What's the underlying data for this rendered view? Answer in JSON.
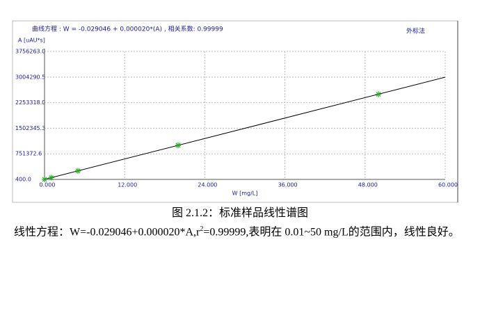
{
  "chart_data": {
    "type": "scatter",
    "title": "曲线方程 : W = -0.029046 + 0.000020*(A) , 相关系数:  0.99999",
    "method_label": "外标法",
    "y_label": "A [uAU*s]",
    "x_label": "W [mg/L]",
    "xlim": [
      0,
      60
    ],
    "xticks": [
      {
        "value": 0,
        "label": "0.000"
      },
      {
        "value": 12,
        "label": "12.000"
      },
      {
        "value": 24,
        "label": "24.000"
      },
      {
        "value": 36,
        "label": "36.000"
      },
      {
        "value": 48,
        "label": "48.000"
      },
      {
        "value": 60,
        "label": "60.000"
      }
    ],
    "ylim": [
      400,
      3756263
    ],
    "yticks": [
      {
        "value": 400,
        "label": "400.0"
      },
      {
        "value": 751372.6,
        "label": "751372.6"
      },
      {
        "value": 1502345.3,
        "label": "1502345.3"
      },
      {
        "value": 2253318,
        "label": "2253318.0"
      },
      {
        "value": 3004290.5,
        "label": "3004290.5"
      },
      {
        "value": 3756263,
        "label": "3756263.0"
      }
    ],
    "grid": true,
    "points": {
      "color": "#1fae1f",
      "x": [
        0.01,
        1,
        5,
        20,
        50
      ],
      "values": [
        2000,
        51000,
        251000,
        1001000,
        2501000
      ]
    },
    "fit_line": {
      "color": "#000000",
      "x": [
        0,
        60
      ],
      "values": [
        1452,
        3001452
      ]
    }
  },
  "caption": "图 2.1.2：标准样品线性谱图",
  "paragraph": {
    "before": "线性方程：W=-0.029046+0.000020*A,r",
    "sup": "2",
    "after": "=0.99999,表明在 0.01~50 mg/L的范围内，线性良好。"
  }
}
